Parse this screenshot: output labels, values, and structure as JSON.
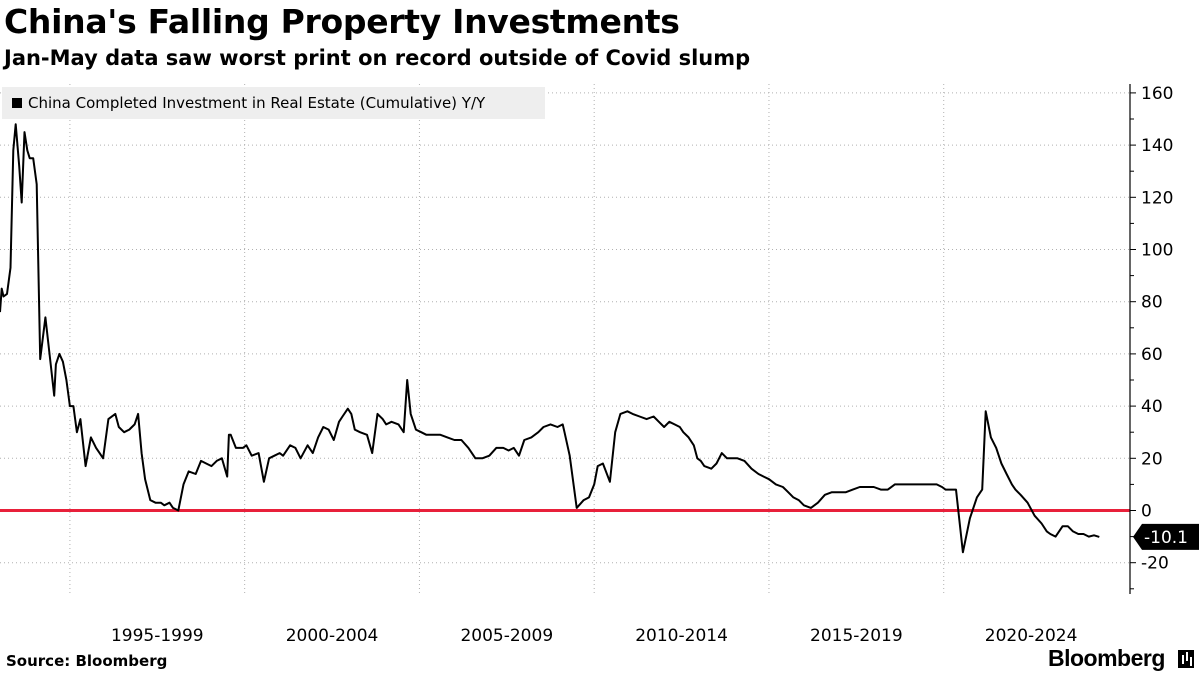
{
  "header": {
    "title": "China's Falling Property Investments",
    "subtitle": "Jan-May data saw worst print on record outside of Covid slump"
  },
  "footer": {
    "source": "Source: Bloomberg",
    "brand": "Bloomberg"
  },
  "colors": {
    "line": "#000000",
    "zero_line": "#e8203a",
    "legend_bg": "#eeeeee",
    "grid": "#b0b0b0"
  },
  "chart_data": {
    "type": "line",
    "title": "China's Falling Property Investments",
    "subtitle": "Jan-May data saw worst print on record outside of Covid slump",
    "legend": "China Completed Investment in Real Estate (Cumulative) Y/Y",
    "legend_position": "top-left",
    "y_axis_side": "right",
    "ylim": [
      -30,
      165
    ],
    "y_ticks": [
      -20,
      0,
      20,
      40,
      60,
      80,
      100,
      120,
      140,
      160
    ],
    "x_range": [
      1993.0,
      2024.7
    ],
    "x_tick_labels": [
      "1995-1999",
      "2000-2004",
      "2005-2009",
      "2010-2014",
      "2015-2019",
      "2020-2024"
    ],
    "x_tick_centers": [
      1997.5,
      2002.5,
      2007.5,
      2012.5,
      2017.5,
      2022.5
    ],
    "x_gridlines": [
      1995,
      2000,
      2005,
      2010,
      2015,
      2020
    ],
    "grid": true,
    "reference_line": 0,
    "last_value_label": "-10.1",
    "series": [
      {
        "name": "China Completed Investment in Real Estate (Cumulative) Y/Y",
        "x": [
          1993.0,
          1993.05,
          1993.1,
          1993.2,
          1993.3,
          1993.38,
          1993.45,
          1993.55,
          1993.62,
          1993.7,
          1993.78,
          1993.85,
          1993.95,
          1994.05,
          1994.15,
          1994.3,
          1994.45,
          1994.55,
          1994.6,
          1994.7,
          1994.8,
          1994.9,
          1995.0,
          1995.1,
          1995.2,
          1995.3,
          1995.45,
          1995.6,
          1995.75,
          1995.85,
          1995.95,
          1996.1,
          1996.3,
          1996.4,
          1996.55,
          1996.7,
          1996.85,
          1996.95,
          1997.05,
          1997.15,
          1997.3,
          1997.45,
          1997.6,
          1997.7,
          1997.85,
          1997.95,
          1998.1,
          1998.25,
          1998.4,
          1998.6,
          1998.75,
          1998.9,
          1999.05,
          1999.2,
          1999.35,
          1999.5,
          1999.55,
          1999.6,
          1999.75,
          1999.9,
          1999.95,
          2000.05,
          2000.2,
          2000.4,
          2000.55,
          2000.7,
          2000.85,
          2001.0,
          2001.1,
          2001.3,
          2001.45,
          2001.6,
          2001.8,
          2001.95,
          2002.1,
          2002.25,
          2002.4,
          2002.55,
          2002.7,
          2002.8,
          2002.95,
          2003.05,
          2003.15,
          2003.3,
          2003.5,
          2003.65,
          2003.8,
          2003.95,
          2004.05,
          2004.2,
          2004.4,
          2004.55,
          2004.65,
          2004.75,
          2004.9,
          2005.05,
          2005.2,
          2005.4,
          2005.6,
          2005.8,
          2006.0,
          2006.2,
          2006.4,
          2006.6,
          2006.8,
          2007.0,
          2007.2,
          2007.4,
          2007.55,
          2007.7,
          2007.85,
          2008.0,
          2008.2,
          2008.4,
          2008.55,
          2008.75,
          2008.95,
          2009.1,
          2009.15,
          2009.3,
          2009.5,
          2009.7,
          2009.85,
          2010.0,
          2010.1,
          2010.25,
          2010.45,
          2010.6,
          2010.75,
          2010.95,
          2011.1,
          2011.3,
          2011.5,
          2011.7,
          2011.85,
          2012.0,
          2012.15,
          2012.3,
          2012.45,
          2012.55,
          2012.7,
          2012.85,
          2012.95,
          2013.05,
          2013.15,
          2013.35,
          2013.5,
          2013.65,
          2013.8,
          2013.95,
          2014.1,
          2014.3,
          2014.5,
          2014.7,
          2014.85,
          2015.0,
          2015.2,
          2015.4,
          2015.55,
          2015.7,
          2015.85,
          2016.0,
          2016.2,
          2016.4,
          2016.6,
          2016.8,
          2017.0,
          2017.2,
          2017.4,
          2017.6,
          2017.8,
          2018.0,
          2018.2,
          2018.4,
          2018.6,
          2018.8,
          2019.0,
          2019.2,
          2019.4,
          2019.6,
          2019.8,
          2019.95,
          2020.05,
          2020.15,
          2020.35,
          2020.55,
          2020.75,
          2020.95,
          2021.05,
          2021.1,
          2021.2,
          2021.35,
          2021.5,
          2021.65,
          2021.8,
          2021.95,
          2022.05,
          2022.2,
          2022.4,
          2022.6,
          2022.8,
          2022.95,
          2023.05,
          2023.2,
          2023.4,
          2023.55,
          2023.7,
          2023.85,
          2024.0,
          2024.15,
          2024.3,
          2024.45
        ],
        "y": [
          76,
          85,
          82,
          83,
          93,
          138,
          148,
          132,
          118,
          145,
          138,
          135,
          135,
          125,
          58,
          74,
          56,
          44,
          56,
          60,
          57,
          50,
          40,
          40,
          30,
          35,
          17,
          28,
          24,
          22,
          20,
          35,
          37,
          32,
          30,
          31,
          33,
          37,
          22,
          12,
          4,
          3,
          3,
          2,
          3,
          1,
          0,
          10,
          15,
          14,
          19,
          18,
          17,
          19,
          20,
          13,
          29,
          29,
          24,
          24,
          24,
          25,
          21,
          22,
          11,
          20,
          21,
          22,
          21,
          25,
          24,
          20,
          25,
          22,
          28,
          32,
          31,
          27,
          34,
          36,
          39,
          37,
          31,
          30,
          29,
          22,
          37,
          35,
          33,
          34,
          33,
          30,
          50,
          37,
          31,
          30,
          29,
          29,
          29,
          28,
          27,
          27,
          24,
          20,
          20,
          21,
          24,
          24,
          23,
          24,
          21,
          27,
          28,
          30,
          32,
          33,
          32,
          33,
          30,
          21,
          1,
          4,
          5,
          10,
          17,
          18,
          11,
          30,
          37,
          38,
          37,
          36,
          35,
          36,
          34,
          32,
          34,
          33,
          32,
          30,
          28,
          25,
          20,
          19,
          17,
          16,
          18,
          22,
          20,
          20,
          20,
          19,
          16,
          14,
          13,
          12,
          10,
          9,
          7,
          5,
          4,
          2,
          1,
          3,
          6,
          7,
          7,
          7,
          8,
          9,
          9,
          9,
          8,
          8,
          10,
          10,
          10,
          10,
          10,
          10,
          10,
          9,
          8,
          8,
          8,
          -16,
          -3,
          5,
          7,
          8,
          38,
          28,
          24,
          18,
          14,
          10,
          8,
          6,
          3,
          -2,
          -5,
          -8,
          -9,
          -10,
          -6,
          -6,
          -8,
          -9,
          -9,
          -10,
          -9.5,
          -10.1
        ]
      }
    ]
  }
}
